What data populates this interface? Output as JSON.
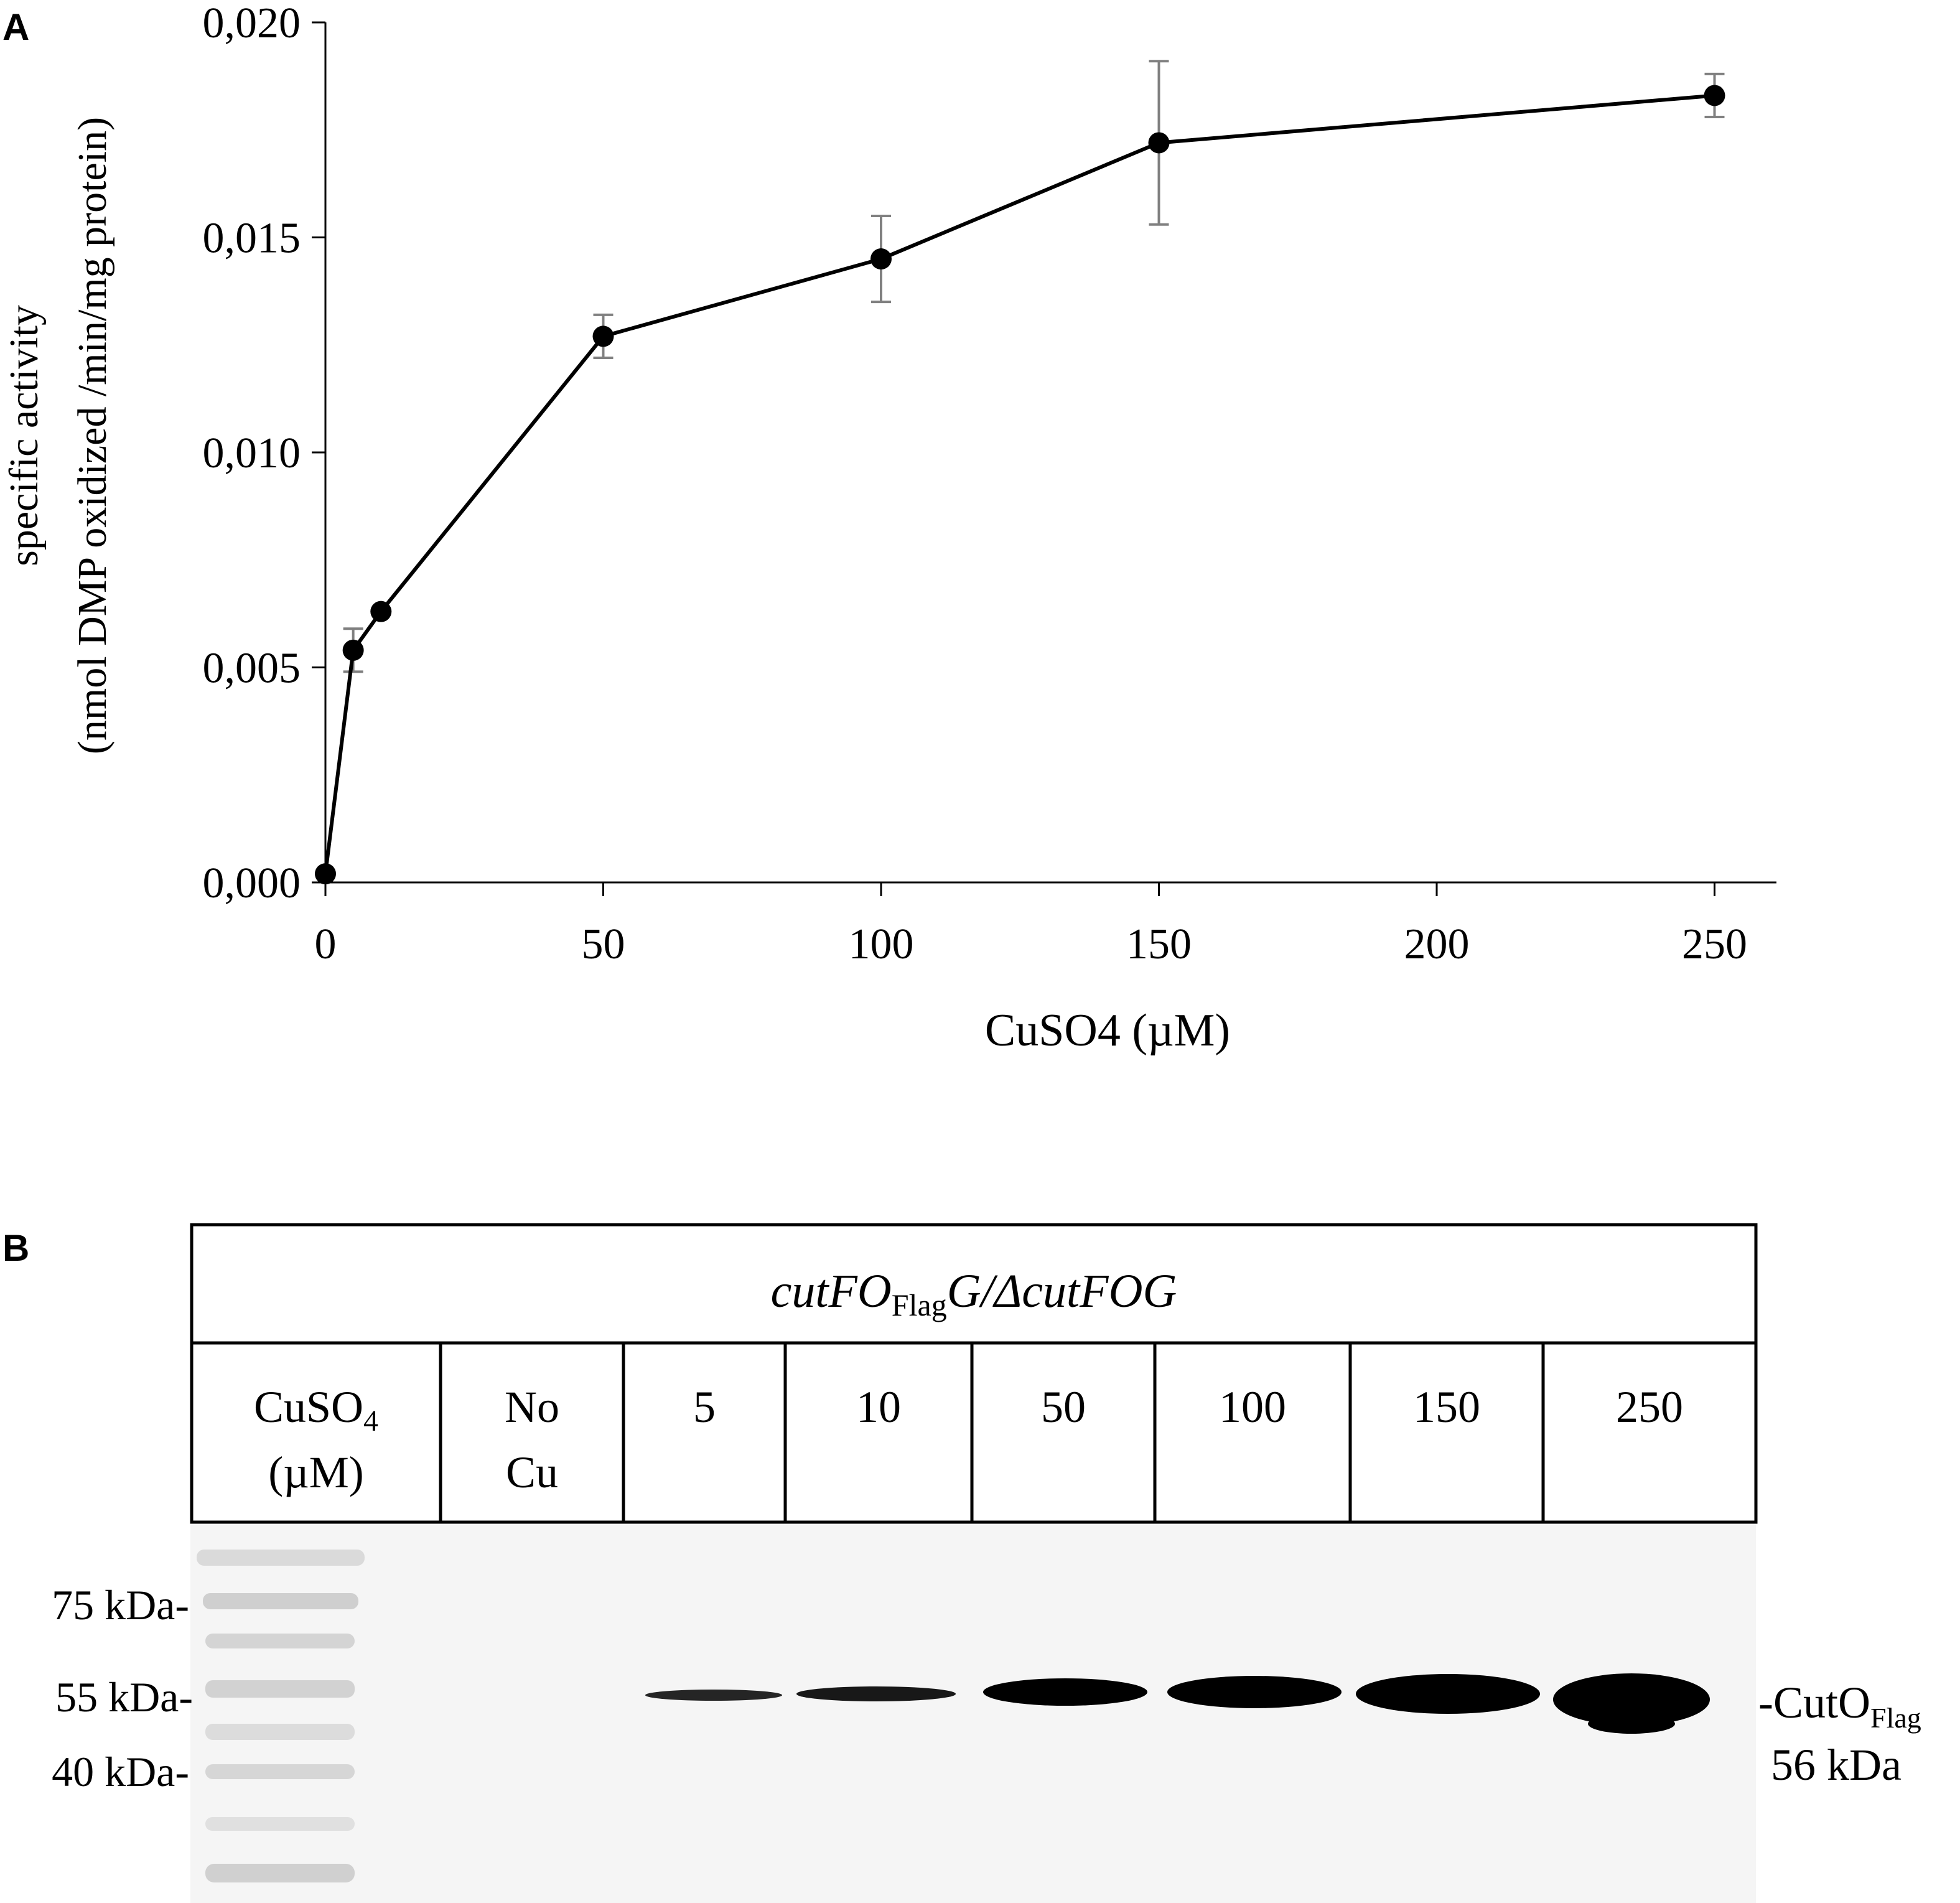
{
  "panelA": {
    "letter": "A",
    "chart_data": {
      "type": "line",
      "xlabel": "CuSO4 (µM)",
      "ylabel_line1": "specific activity",
      "ylabel_line2": "(nmol DMP oxidized /min/mg protein)",
      "xlim": [
        0,
        260
      ],
      "ylim": [
        0.0,
        0.02
      ],
      "x_ticks": [
        0,
        50,
        100,
        150,
        200,
        250
      ],
      "x_tick_labels": [
        "0",
        "50",
        "100",
        "150",
        "200",
        "250"
      ],
      "y_ticks": [
        0.0,
        0.005,
        0.01,
        0.015,
        0.02
      ],
      "y_tick_labels": [
        "0,000",
        "0,005",
        "0,010",
        "0,015",
        "0,020"
      ],
      "grid": false,
      "series": [
        {
          "x": [
            0,
            5,
            10,
            50,
            100,
            150,
            250
          ],
          "y": [
            0.0002,
            0.0054,
            0.0063,
            0.0127,
            0.0145,
            0.0172,
            0.0183
          ],
          "err": [
            0.0,
            0.0005,
            0.0,
            0.0005,
            0.001,
            0.0019,
            0.0005
          ],
          "color": "#000000",
          "error_color": "#808080"
        }
      ]
    }
  },
  "panelB": {
    "letter": "B",
    "header_parts": [
      "cutFO",
      "Flag",
      "G/ΔcutFOG"
    ],
    "col_header": {
      "line1_main": "CuSO",
      "line1_sub": "4",
      "line2": "(µM)"
    },
    "lanes": [
      {
        "line1": "No",
        "line2": "Cu"
      },
      {
        "line1": "5",
        "line2": ""
      },
      {
        "line1": "10",
        "line2": ""
      },
      {
        "line1": "50",
        "line2": ""
      },
      {
        "line1": "100",
        "line2": ""
      },
      {
        "line1": "150",
        "line2": ""
      },
      {
        "line1": "250",
        "line2": ""
      }
    ],
    "markers": [
      "75 kDa-",
      "55 kDa-",
      "40 kDa-"
    ],
    "band_label_main": "-CutO",
    "band_label_sub": "Flag",
    "band_size": "56 kDa",
    "band_intensity": [
      0,
      0.35,
      0.45,
      0.75,
      0.85,
      0.95,
      1.0
    ]
  }
}
